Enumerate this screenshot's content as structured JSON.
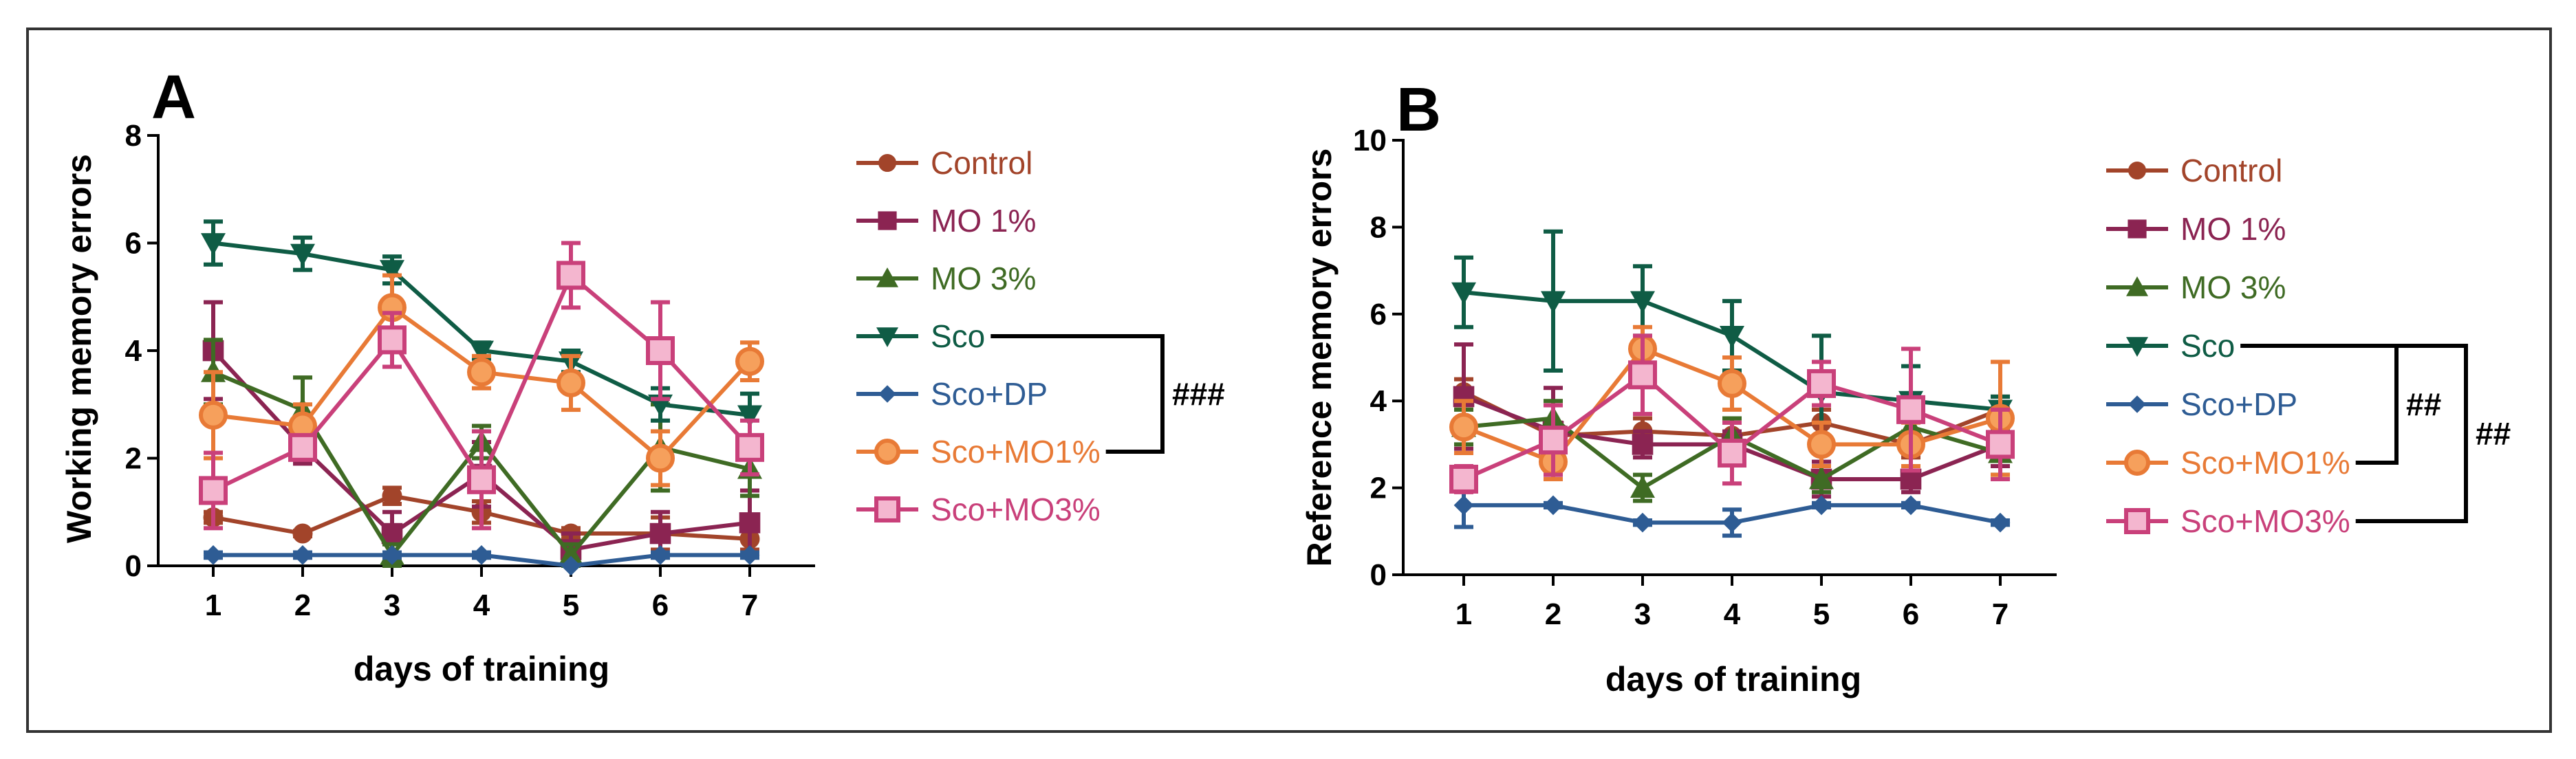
{
  "colors": {
    "control": "#a2442a",
    "mo1": "#8b2452",
    "mo3": "#3f6b24",
    "sco": "#0f5c45",
    "scodp": "#2e5c94",
    "scomo1": "#e87a36",
    "scomo3": "#c9407a"
  },
  "chart_data": [
    {
      "type": "line",
      "panel": "A",
      "ylabel": "Working memory errors",
      "xlabel": "days of training",
      "x": [
        1,
        2,
        3,
        4,
        5,
        6,
        7
      ],
      "xticks": [
        "1",
        "2",
        "3",
        "4",
        "5",
        "6",
        "7"
      ],
      "ylim": [
        0,
        8
      ],
      "yticks": [
        "0",
        "2",
        "4",
        "6",
        "8"
      ],
      "series": [
        {
          "name": "Control",
          "key": "control",
          "marker": "circle-small",
          "values": [
            0.9,
            0.6,
            1.3,
            1.0,
            0.6,
            0.6,
            0.5
          ],
          "err": [
            0.1,
            0.05,
            0.15,
            0.2,
            0.1,
            0.3,
            0.2
          ]
        },
        {
          "name": "MO 1%",
          "key": "mo1",
          "marker": "square",
          "values": [
            4.0,
            2.2,
            0.6,
            1.7,
            0.3,
            0.6,
            0.8
          ],
          "err": [
            0.9,
            0.3,
            0.4,
            0.6,
            0.3,
            0.4,
            0.6
          ]
        },
        {
          "name": "MO 3%",
          "key": "mo3",
          "marker": "triangle-up",
          "values": [
            3.6,
            2.9,
            0.2,
            2.3,
            0.2,
            2.2,
            1.8
          ],
          "err": [
            0.6,
            0.6,
            0.2,
            0.3,
            0.2,
            0.8,
            0.5
          ]
        },
        {
          "name": "Sco",
          "key": "sco",
          "marker": "triangle-down",
          "values": [
            6.0,
            5.8,
            5.5,
            4.0,
            3.8,
            3.0,
            2.8
          ],
          "err": [
            0.4,
            0.3,
            0.25,
            0.15,
            0.2,
            0.3,
            0.4
          ]
        },
        {
          "name": "Sco+DP",
          "key": "scodp",
          "marker": "diamond",
          "values": [
            0.2,
            0.2,
            0.2,
            0.2,
            0.0,
            0.2,
            0.2
          ],
          "err": [
            0.05,
            0.05,
            0.05,
            0.05,
            0.0,
            0.05,
            0.05
          ]
        },
        {
          "name": "Sco+MO1%",
          "key": "scomo1",
          "marker": "circle-open",
          "values": [
            2.8,
            2.6,
            4.8,
            3.6,
            3.4,
            2.0,
            3.8
          ],
          "err": [
            0.8,
            0.4,
            0.6,
            0.3,
            0.5,
            0.5,
            0.35
          ]
        },
        {
          "name": "Sco+MO3%",
          "key": "scomo3",
          "marker": "square-open",
          "values": [
            1.4,
            2.2,
            4.2,
            1.6,
            5.4,
            4.0,
            2.2
          ],
          "err": [
            0.7,
            0.2,
            0.5,
            0.9,
            0.6,
            0.9,
            0.5
          ]
        }
      ],
      "significance": [
        {
          "label": "###",
          "from": "Sco",
          "to": "Sco+MO1%"
        }
      ]
    },
    {
      "type": "line",
      "panel": "B",
      "ylabel": "Reference memory errors",
      "xlabel": "days of training",
      "x": [
        1,
        2,
        3,
        4,
        5,
        6,
        7
      ],
      "xticks": [
        "1",
        "2",
        "3",
        "4",
        "5",
        "6",
        "7"
      ],
      "ylim": [
        0,
        10
      ],
      "yticks": [
        "0",
        "2",
        "4",
        "6",
        "8",
        "10"
      ],
      "series": [
        {
          "name": "Control",
          "key": "control",
          "marker": "circle-small",
          "values": [
            4.2,
            3.2,
            3.3,
            3.2,
            3.5,
            3.0,
            3.8
          ],
          "err": [
            0.3,
            0.3,
            0.3,
            0.3,
            0.3,
            0.3,
            0.3
          ]
        },
        {
          "name": "MO 1%",
          "key": "mo1",
          "marker": "square",
          "values": [
            4.1,
            3.3,
            3.0,
            3.0,
            2.2,
            2.2,
            3.0
          ],
          "err": [
            1.2,
            1.0,
            0.3,
            0.3,
            0.4,
            0.3,
            0.5
          ]
        },
        {
          "name": "MO 3%",
          "key": "mo3",
          "marker": "triangle-up",
          "values": [
            3.4,
            3.6,
            2.0,
            3.2,
            2.2,
            3.4,
            2.8
          ],
          "err": [
            0.4,
            0.4,
            0.3,
            0.4,
            0.3,
            0.4,
            0.5
          ]
        },
        {
          "name": "Sco",
          "key": "sco",
          "marker": "triangle-down",
          "values": [
            6.5,
            6.3,
            6.3,
            5.5,
            4.2,
            4.0,
            3.8
          ],
          "err": [
            0.8,
            1.6,
            0.8,
            0.8,
            1.3,
            0.8,
            0.3
          ]
        },
        {
          "name": "Sco+DP",
          "key": "scodp",
          "marker": "diamond",
          "values": [
            1.6,
            1.6,
            1.2,
            1.2,
            1.6,
            1.6,
            1.2
          ],
          "err": [
            0.5,
            0.05,
            0.05,
            0.3,
            0.05,
            0.05,
            0.05
          ]
        },
        {
          "name": "Sco+MO1%",
          "key": "scomo1",
          "marker": "circle-open",
          "values": [
            3.4,
            2.6,
            5.2,
            4.4,
            3.0,
            3.0,
            3.6
          ],
          "err": [
            0.6,
            0.4,
            0.5,
            0.6,
            0.5,
            0.5,
            1.3
          ]
        },
        {
          "name": "Sco+MO3%",
          "key": "scomo3",
          "marker": "square-open",
          "values": [
            2.2,
            3.1,
            4.6,
            2.8,
            4.4,
            3.8,
            3.0
          ],
          "err": [
            0.3,
            0.8,
            0.9,
            0.7,
            0.5,
            1.4,
            0.8
          ]
        }
      ],
      "significance": [
        {
          "label": "##",
          "from": "Sco",
          "to": "Sco+MO1%"
        },
        {
          "label": "##",
          "from": "Sco",
          "to": "Sco+MO3%"
        }
      ]
    }
  ]
}
